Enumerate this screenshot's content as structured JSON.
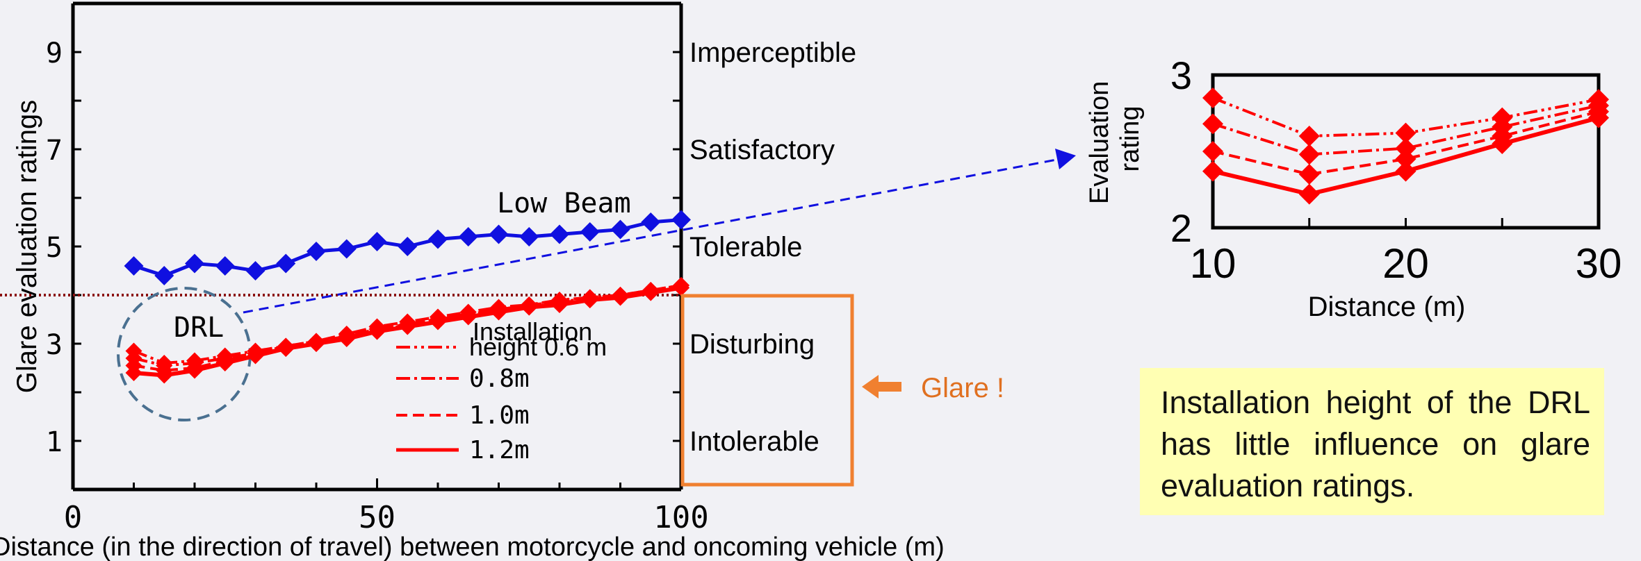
{
  "chart_data": [
    {
      "type": "line",
      "xlabel": "Distance (in the direction of travel) between motorcycle and oncoming vehicle (m)",
      "ylabel": "Glare evaluation ratings",
      "xlim": [
        0,
        100
      ],
      "ylim": [
        0,
        10
      ],
      "x_ticks": [
        "0",
        "50",
        "100"
      ],
      "y_ticks": [
        "1",
        "3",
        "5",
        "7",
        "9"
      ],
      "scale_labels": [
        {
          "value": 9,
          "text": "Imperceptible"
        },
        {
          "value": 7,
          "text": "Satisfactory"
        },
        {
          "value": 5,
          "text": "Tolerable"
        },
        {
          "value": 3,
          "text": "Disturbing"
        },
        {
          "value": 1,
          "text": "Intolerable"
        }
      ],
      "threshold": 4,
      "x": [
        10,
        15,
        20,
        25,
        30,
        35,
        40,
        45,
        50,
        55,
        60,
        65,
        70,
        75,
        80,
        85,
        90,
        95,
        100
      ],
      "series": [
        {
          "name": "Low Beam",
          "color": "#1010e0",
          "values": [
            4.6,
            4.4,
            4.65,
            4.6,
            4.5,
            4.65,
            4.9,
            4.95,
            5.1,
            5.0,
            5.15,
            5.2,
            5.25,
            5.2,
            5.25,
            5.3,
            5.35,
            5.5,
            5.55
          ]
        },
        {
          "name": "0.6 m",
          "color": "#ff0000",
          "values": [
            2.85,
            2.6,
            2.65,
            2.75,
            2.85,
            2.95,
            3.05,
            3.2,
            3.35,
            3.45,
            3.55,
            3.65,
            3.75,
            3.8,
            3.9,
            3.95,
            4.0,
            4.1,
            4.2
          ]
        },
        {
          "name": "0.8m",
          "color": "#ff0000",
          "values": [
            2.7,
            2.55,
            2.6,
            2.7,
            2.8,
            2.95,
            3.05,
            3.15,
            3.3,
            3.4,
            3.5,
            3.6,
            3.7,
            3.8,
            3.85,
            3.95,
            4.0,
            4.1,
            4.2
          ]
        },
        {
          "name": "1.0m",
          "color": "#ff0000",
          "values": [
            2.55,
            2.45,
            2.5,
            2.65,
            2.8,
            2.9,
            3.0,
            3.15,
            3.25,
            3.4,
            3.5,
            3.6,
            3.7,
            3.75,
            3.85,
            3.9,
            4.0,
            4.05,
            4.15
          ]
        },
        {
          "name": "1.2m",
          "color": "#ff0000",
          "values": [
            2.4,
            2.35,
            2.45,
            2.6,
            2.75,
            2.9,
            3.0,
            3.1,
            3.25,
            3.35,
            3.45,
            3.55,
            3.65,
            3.75,
            3.8,
            3.9,
            3.95,
            4.05,
            4.15
          ]
        }
      ],
      "legend_title": "Installation",
      "legend_labels": [
        "height  0.6 m",
        "0.8m",
        "1.0m",
        "1.2m"
      ],
      "annotations": {
        "low_beam": "Low Beam",
        "drl": "DRL",
        "glare": "Glare !"
      }
    },
    {
      "type": "line",
      "xlabel": "Distance (m)",
      "ylabel": "Evaluation rating",
      "xlim": [
        10,
        30
      ],
      "ylim": [
        2,
        3
      ],
      "x_ticks": [
        "10",
        "20",
        "30"
      ],
      "y_ticks": [
        "2",
        "3"
      ],
      "x": [
        10,
        15,
        20,
        25,
        30
      ],
      "series": [
        {
          "name": "0.6 m",
          "values": [
            2.85,
            2.6,
            2.62,
            2.72,
            2.84
          ]
        },
        {
          "name": "0.8m",
          "values": [
            2.68,
            2.48,
            2.52,
            2.66,
            2.8
          ]
        },
        {
          "name": "1.0m",
          "values": [
            2.5,
            2.35,
            2.45,
            2.6,
            2.76
          ]
        },
        {
          "name": "1.2m",
          "values": [
            2.37,
            2.22,
            2.37,
            2.55,
            2.72
          ]
        }
      ]
    }
  ],
  "note": "Installation height of the DRL has little influence on glare evaluation ratings.",
  "colors": {
    "low_beam": "#1010e0",
    "drl": "#ff0000",
    "glare_box": "#f08030",
    "threshold": "#8b1010",
    "note_bg": "#ffffb3"
  }
}
